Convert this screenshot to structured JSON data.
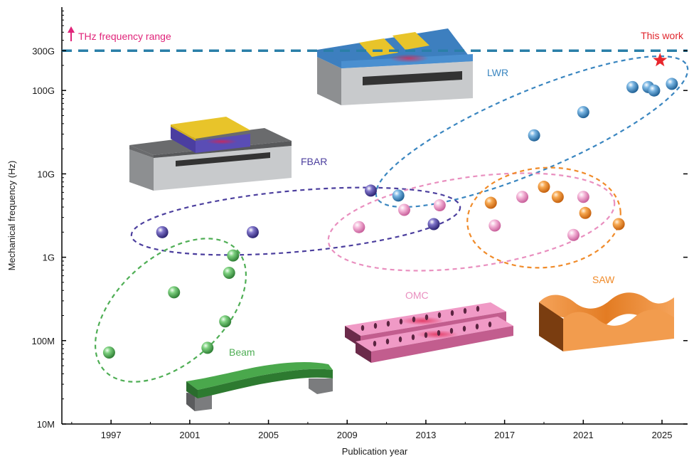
{
  "chart_data": {
    "type": "scatter",
    "xlabel": "Publication year",
    "ylabel": "Mechanical frequency (Hz)",
    "x_scale": "linear",
    "y_scale": "log",
    "xlim": [
      1994.5,
      2026.3
    ],
    "ylim": [
      10000000,
      1000000000000
    ],
    "x_ticks": [
      {
        "value": 1997,
        "label": "1997"
      },
      {
        "value": 2001,
        "label": "2001"
      },
      {
        "value": 2005,
        "label": "2005"
      },
      {
        "value": 2009,
        "label": "2009"
      },
      {
        "value": 2013,
        "label": "2013"
      },
      {
        "value": 2017,
        "label": "2017"
      },
      {
        "value": 2021,
        "label": "2021"
      },
      {
        "value": 2025,
        "label": "2025"
      }
    ],
    "y_ticks": [
      {
        "value": 10000000,
        "label": "10M"
      },
      {
        "value": 100000000,
        "label": "100M"
      },
      {
        "value": 1000000000,
        "label": "1G"
      },
      {
        "value": 10000000000,
        "label": "10G"
      },
      {
        "value": 100000000000,
        "label": "100G"
      },
      {
        "value": 300000000000,
        "label": "300G"
      }
    ],
    "reference_line": {
      "value": 300000000000,
      "color": "#2a7fa8",
      "style": "dashed"
    },
    "annotations": {
      "thz_range": "THz frequency range",
      "this_work": "This work"
    },
    "grid": false,
    "series": [
      {
        "name": "LWR",
        "color": "#3a86c0",
        "points": [
          [
            2011.6,
            5500000000
          ],
          [
            2018.5,
            29000000000
          ],
          [
            2021.0,
            55000000000
          ],
          [
            2023.5,
            110000000000
          ],
          [
            2024.3,
            110000000000
          ],
          [
            2024.6,
            100000000000
          ],
          [
            2025.5,
            120000000000
          ]
        ]
      },
      {
        "name": "FBAR",
        "color": "#4c3f9e",
        "points": [
          [
            1999.6,
            2000000000
          ],
          [
            2004.2,
            2000000000
          ],
          [
            2010.2,
            6300000000
          ],
          [
            2013.4,
            2500000000
          ]
        ]
      },
      {
        "name": "OMC",
        "color": "#e98fbf",
        "points": [
          [
            2009.6,
            2300000000
          ],
          [
            2011.9,
            3700000000
          ],
          [
            2013.7,
            4200000000
          ],
          [
            2016.5,
            2400000000
          ],
          [
            2017.9,
            5300000000
          ],
          [
            2020.5,
            1850000000
          ],
          [
            2021.0,
            5300000000
          ]
        ]
      },
      {
        "name": "SAW",
        "color": "#f08b2a",
        "points": [
          [
            2016.3,
            4500000000
          ],
          [
            2019.0,
            7000000000
          ],
          [
            2019.7,
            5300000000
          ],
          [
            2021.1,
            3400000000
          ],
          [
            2022.8,
            2500000000
          ]
        ]
      },
      {
        "name": "Beam",
        "color": "#4fae55",
        "points": [
          [
            1996.9,
            72000000
          ],
          [
            2000.2,
            380000000
          ],
          [
            2001.9,
            82000000
          ],
          [
            2002.8,
            170000000
          ],
          [
            2003.0,
            650000000
          ],
          [
            2003.2,
            1050000000
          ]
        ]
      }
    ],
    "this_work_point": {
      "x": 2024.9,
      "y": 230000000000,
      "color": "#e8262c",
      "marker": "star"
    },
    "group_labels": [
      {
        "text": "LWR",
        "color": "#3a86c0"
      },
      {
        "text": "FBAR",
        "color": "#4c3f9e"
      },
      {
        "text": "OMC",
        "color": "#e98fbf"
      },
      {
        "text": "SAW",
        "color": "#f08b2a"
      },
      {
        "text": "Beam",
        "color": "#4fae55"
      }
    ]
  }
}
